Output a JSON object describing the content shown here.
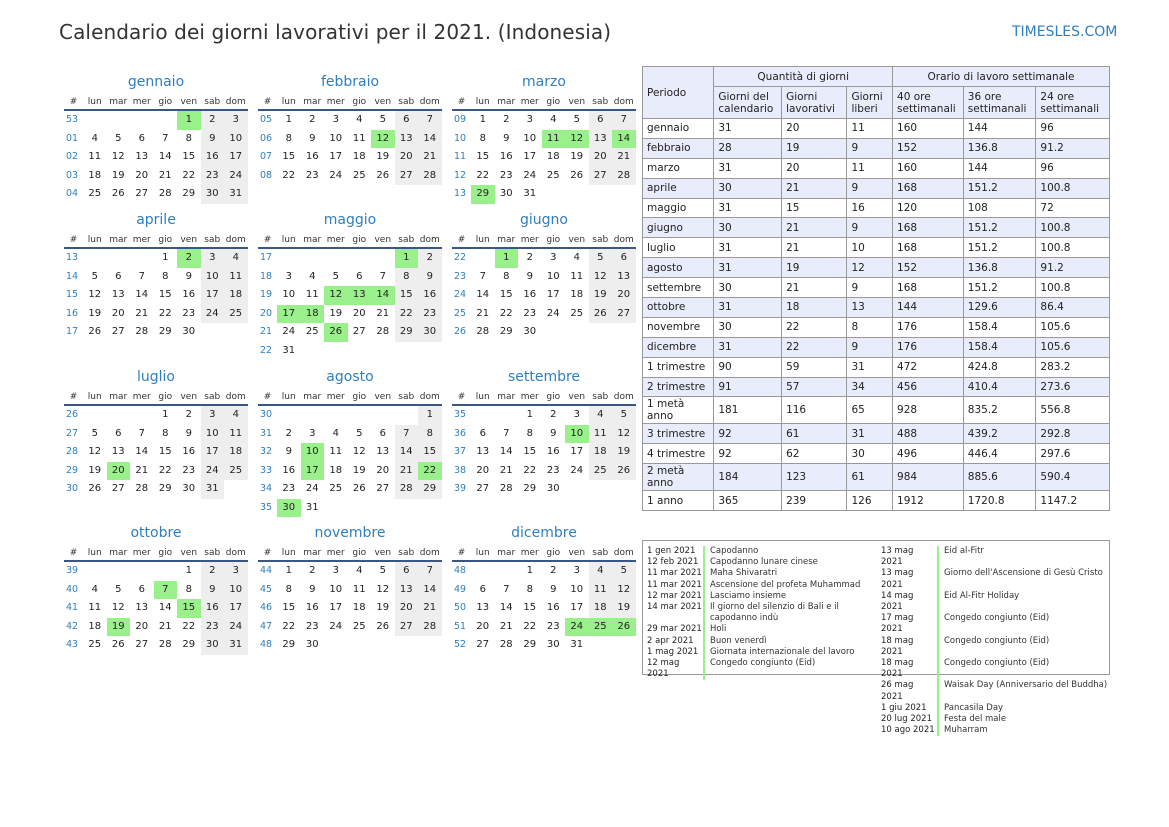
{
  "title": "Calendario dei giorni lavorativi per il 2021. (Indonesia)",
  "brand": "TIMESLES.COM",
  "colors": {
    "accent": "#2e7fbf",
    "holiday": "#9af08a",
    "weekend": "#eeeeee",
    "header_rule": "#3a5683",
    "table_head": "#e8ecfb"
  },
  "weekday_header": [
    "#",
    "lun",
    "mar",
    "mer",
    "gio",
    "ven",
    "sab",
    "dom"
  ],
  "months": [
    {
      "name": "gennaio",
      "rows": [
        {
          "w": "53",
          "d": [
            "",
            "",
            "",
            "",
            "1",
            "2",
            "3"
          ]
        },
        {
          "w": "01",
          "d": [
            "4",
            "5",
            "6",
            "7",
            "8",
            "9",
            "10"
          ]
        },
        {
          "w": "02",
          "d": [
            "11",
            "12",
            "13",
            "14",
            "15",
            "16",
            "17"
          ]
        },
        {
          "w": "03",
          "d": [
            "18",
            "19",
            "20",
            "21",
            "22",
            "23",
            "24"
          ]
        },
        {
          "w": "04",
          "d": [
            "25",
            "26",
            "27",
            "28",
            "29",
            "30",
            "31"
          ]
        }
      ],
      "holidays": [
        "1"
      ]
    },
    {
      "name": "febbraio",
      "rows": [
        {
          "w": "05",
          "d": [
            "1",
            "2",
            "3",
            "4",
            "5",
            "6",
            "7"
          ]
        },
        {
          "w": "06",
          "d": [
            "8",
            "9",
            "10",
            "11",
            "12",
            "13",
            "14"
          ]
        },
        {
          "w": "07",
          "d": [
            "15",
            "16",
            "17",
            "18",
            "19",
            "20",
            "21"
          ]
        },
        {
          "w": "08",
          "d": [
            "22",
            "23",
            "24",
            "25",
            "26",
            "27",
            "28"
          ]
        }
      ],
      "holidays": [
        "12"
      ]
    },
    {
      "name": "marzo",
      "rows": [
        {
          "w": "09",
          "d": [
            "1",
            "2",
            "3",
            "4",
            "5",
            "6",
            "7"
          ]
        },
        {
          "w": "10",
          "d": [
            "8",
            "9",
            "10",
            "11",
            "12",
            "13",
            "14"
          ]
        },
        {
          "w": "11",
          "d": [
            "15",
            "16",
            "17",
            "18",
            "19",
            "20",
            "21"
          ]
        },
        {
          "w": "12",
          "d": [
            "22",
            "23",
            "24",
            "25",
            "26",
            "27",
            "28"
          ]
        },
        {
          "w": "13",
          "d": [
            "29",
            "30",
            "31",
            "",
            "",
            "",
            ""
          ]
        }
      ],
      "holidays": [
        "11",
        "12",
        "14",
        "29"
      ]
    },
    {
      "name": "aprile",
      "rows": [
        {
          "w": "13",
          "d": [
            "",
            "",
            "",
            "1",
            "2",
            "3",
            "4"
          ]
        },
        {
          "w": "14",
          "d": [
            "5",
            "6",
            "7",
            "8",
            "9",
            "10",
            "11"
          ]
        },
        {
          "w": "15",
          "d": [
            "12",
            "13",
            "14",
            "15",
            "16",
            "17",
            "18"
          ]
        },
        {
          "w": "16",
          "d": [
            "19",
            "20",
            "21",
            "22",
            "23",
            "24",
            "25"
          ]
        },
        {
          "w": "17",
          "d": [
            "26",
            "27",
            "28",
            "29",
            "30",
            "",
            ""
          ]
        }
      ],
      "holidays": [
        "2"
      ]
    },
    {
      "name": "maggio",
      "rows": [
        {
          "w": "17",
          "d": [
            "",
            "",
            "",
            "",
            "",
            "1",
            "2"
          ]
        },
        {
          "w": "18",
          "d": [
            "3",
            "4",
            "5",
            "6",
            "7",
            "8",
            "9"
          ]
        },
        {
          "w": "19",
          "d": [
            "10",
            "11",
            "12",
            "13",
            "14",
            "15",
            "16"
          ]
        },
        {
          "w": "20",
          "d": [
            "17",
            "18",
            "19",
            "20",
            "21",
            "22",
            "23"
          ]
        },
        {
          "w": "21",
          "d": [
            "24",
            "25",
            "26",
            "27",
            "28",
            "29",
            "30"
          ]
        },
        {
          "w": "22",
          "d": [
            "31",
            "",
            "",
            "",
            "",
            "",
            ""
          ]
        }
      ],
      "holidays": [
        "1",
        "12",
        "13",
        "14",
        "17",
        "18",
        "26"
      ]
    },
    {
      "name": "giugno",
      "rows": [
        {
          "w": "22",
          "d": [
            "",
            "1",
            "2",
            "3",
            "4",
            "5",
            "6"
          ]
        },
        {
          "w": "23",
          "d": [
            "7",
            "8",
            "9",
            "10",
            "11",
            "12",
            "13"
          ]
        },
        {
          "w": "24",
          "d": [
            "14",
            "15",
            "16",
            "17",
            "18",
            "19",
            "20"
          ]
        },
        {
          "w": "25",
          "d": [
            "21",
            "22",
            "23",
            "24",
            "25",
            "26",
            "27"
          ]
        },
        {
          "w": "26",
          "d": [
            "28",
            "29",
            "30",
            "",
            "",
            "",
            ""
          ]
        }
      ],
      "holidays": [
        "1"
      ]
    },
    {
      "name": "luglio",
      "rows": [
        {
          "w": "26",
          "d": [
            "",
            "",
            "",
            "1",
            "2",
            "3",
            "4"
          ]
        },
        {
          "w": "27",
          "d": [
            "5",
            "6",
            "7",
            "8",
            "9",
            "10",
            "11"
          ]
        },
        {
          "w": "28",
          "d": [
            "12",
            "13",
            "14",
            "15",
            "16",
            "17",
            "18"
          ]
        },
        {
          "w": "29",
          "d": [
            "19",
            "20",
            "21",
            "22",
            "23",
            "24",
            "25"
          ]
        },
        {
          "w": "30",
          "d": [
            "26",
            "27",
            "28",
            "29",
            "30",
            "31",
            ""
          ]
        }
      ],
      "holidays": [
        "20"
      ]
    },
    {
      "name": "agosto",
      "rows": [
        {
          "w": "30",
          "d": [
            "",
            "",
            "",
            "",
            "",
            "",
            "1"
          ]
        },
        {
          "w": "31",
          "d": [
            "2",
            "3",
            "4",
            "5",
            "6",
            "7",
            "8"
          ]
        },
        {
          "w": "32",
          "d": [
            "9",
            "10",
            "11",
            "12",
            "13",
            "14",
            "15"
          ]
        },
        {
          "w": "33",
          "d": [
            "16",
            "17",
            "18",
            "19",
            "20",
            "21",
            "22"
          ]
        },
        {
          "w": "34",
          "d": [
            "23",
            "24",
            "25",
            "26",
            "27",
            "28",
            "29"
          ]
        },
        {
          "w": "35",
          "d": [
            "30",
            "31",
            "",
            "",
            "",
            "",
            ""
          ]
        }
      ],
      "holidays": [
        "10",
        "17",
        "22",
        "30"
      ]
    },
    {
      "name": "settembre",
      "rows": [
        {
          "w": "35",
          "d": [
            "",
            "",
            "1",
            "2",
            "3",
            "4",
            "5"
          ]
        },
        {
          "w": "36",
          "d": [
            "6",
            "7",
            "8",
            "9",
            "10",
            "11",
            "12"
          ]
        },
        {
          "w": "37",
          "d": [
            "13",
            "14",
            "15",
            "16",
            "17",
            "18",
            "19"
          ]
        },
        {
          "w": "38",
          "d": [
            "20",
            "21",
            "22",
            "23",
            "24",
            "25",
            "26"
          ]
        },
        {
          "w": "39",
          "d": [
            "27",
            "28",
            "29",
            "30",
            "",
            "",
            ""
          ]
        }
      ],
      "holidays": [
        "10"
      ]
    },
    {
      "name": "ottobre",
      "rows": [
        {
          "w": "39",
          "d": [
            "",
            "",
            "",
            "",
            "1",
            "2",
            "3"
          ]
        },
        {
          "w": "40",
          "d": [
            "4",
            "5",
            "6",
            "7",
            "8",
            "9",
            "10"
          ]
        },
        {
          "w": "41",
          "d": [
            "11",
            "12",
            "13",
            "14",
            "15",
            "16",
            "17"
          ]
        },
        {
          "w": "42",
          "d": [
            "18",
            "19",
            "20",
            "21",
            "22",
            "23",
            "24"
          ]
        },
        {
          "w": "43",
          "d": [
            "25",
            "26",
            "27",
            "28",
            "29",
            "30",
            "31"
          ]
        }
      ],
      "holidays": [
        "7",
        "15",
        "19"
      ]
    },
    {
      "name": "novembre",
      "rows": [
        {
          "w": "44",
          "d": [
            "1",
            "2",
            "3",
            "4",
            "5",
            "6",
            "7"
          ]
        },
        {
          "w": "45",
          "d": [
            "8",
            "9",
            "10",
            "11",
            "12",
            "13",
            "14"
          ]
        },
        {
          "w": "46",
          "d": [
            "15",
            "16",
            "17",
            "18",
            "19",
            "20",
            "21"
          ]
        },
        {
          "w": "47",
          "d": [
            "22",
            "23",
            "24",
            "25",
            "26",
            "27",
            "28"
          ]
        },
        {
          "w": "48",
          "d": [
            "29",
            "30",
            "",
            "",
            "",
            "",
            ""
          ]
        }
      ],
      "holidays": []
    },
    {
      "name": "dicembre",
      "rows": [
        {
          "w": "48",
          "d": [
            "",
            "",
            "1",
            "2",
            "3",
            "4",
            "5"
          ]
        },
        {
          "w": "49",
          "d": [
            "6",
            "7",
            "8",
            "9",
            "10",
            "11",
            "12"
          ]
        },
        {
          "w": "50",
          "d": [
            "13",
            "14",
            "15",
            "16",
            "17",
            "18",
            "19"
          ]
        },
        {
          "w": "51",
          "d": [
            "20",
            "21",
            "22",
            "23",
            "24",
            "25",
            "26"
          ]
        },
        {
          "w": "52",
          "d": [
            "27",
            "28",
            "29",
            "30",
            "31",
            "",
            ""
          ]
        }
      ],
      "holidays": [
        "24",
        "25",
        "26"
      ]
    }
  ],
  "stats": {
    "head": {
      "period": "Periodo",
      "days_group": "Quantità di giorni",
      "hours_group": "Orario di lavoro settimanale",
      "cols": [
        "Giorni del calendario",
        "Giorni lavorativi",
        "Giorni liberi",
        "40 ore settimanali",
        "36 ore settimanali",
        "24 ore settimanali"
      ]
    },
    "rows": [
      [
        "gennaio",
        "31",
        "20",
        "11",
        "160",
        "144",
        "96"
      ],
      [
        "febbraio",
        "28",
        "19",
        "9",
        "152",
        "136.8",
        "91.2"
      ],
      [
        "marzo",
        "31",
        "20",
        "11",
        "160",
        "144",
        "96"
      ],
      [
        "aprile",
        "30",
        "21",
        "9",
        "168",
        "151.2",
        "100.8"
      ],
      [
        "maggio",
        "31",
        "15",
        "16",
        "120",
        "108",
        "72"
      ],
      [
        "giugno",
        "30",
        "21",
        "9",
        "168",
        "151.2",
        "100.8"
      ],
      [
        "luglio",
        "31",
        "21",
        "10",
        "168",
        "151.2",
        "100.8"
      ],
      [
        "agosto",
        "31",
        "19",
        "12",
        "152",
        "136.8",
        "91.2"
      ],
      [
        "settembre",
        "30",
        "21",
        "9",
        "168",
        "151.2",
        "100.8"
      ],
      [
        "ottobre",
        "31",
        "18",
        "13",
        "144",
        "129.6",
        "86.4"
      ],
      [
        "novembre",
        "30",
        "22",
        "8",
        "176",
        "158.4",
        "105.6"
      ],
      [
        "dicembre",
        "31",
        "22",
        "9",
        "176",
        "158.4",
        "105.6"
      ],
      [
        "1 trimestre",
        "90",
        "59",
        "31",
        "472",
        "424.8",
        "283.2"
      ],
      [
        "2 trimestre",
        "91",
        "57",
        "34",
        "456",
        "410.4",
        "273.6"
      ],
      [
        "1 metà anno",
        "181",
        "116",
        "65",
        "928",
        "835.2",
        "556.8"
      ],
      [
        "3 trimestre",
        "92",
        "61",
        "31",
        "488",
        "439.2",
        "292.8"
      ],
      [
        "4 trimestre",
        "92",
        "62",
        "30",
        "496",
        "446.4",
        "297.6"
      ],
      [
        "2 metà anno",
        "184",
        "123",
        "61",
        "984",
        "885.6",
        "590.4"
      ],
      [
        "1 anno",
        "365",
        "239",
        "126",
        "1912",
        "1720.8",
        "1147.2"
      ]
    ]
  },
  "holiday_list": {
    "col1": [
      {
        "date": "1 gen 2021",
        "name": "Capodanno"
      },
      {
        "date": "12 feb 2021",
        "name": "Capodanno lunare cinese"
      },
      {
        "date": "11 mar 2021",
        "name": "Maha Shivaratri"
      },
      {
        "date": "11 mar 2021",
        "name": "Ascensione del profeta Muhammad"
      },
      {
        "date": "12 mar 2021",
        "name": "Lasciamo insieme"
      },
      {
        "date": "14 mar 2021",
        "name": "Il giorno del silenzio di Bali e il capodanno indù"
      },
      {
        "date": "29 mar 2021",
        "name": "Holi"
      },
      {
        "date": "2 apr 2021",
        "name": "Buon venerdì"
      },
      {
        "date": "1 mag 2021",
        "name": "Giornata internazionale del lavoro"
      },
      {
        "date": "12 mag 2021",
        "name": "Congedo congiunto (Eid)"
      }
    ],
    "col2": [
      {
        "date": "13 mag 2021",
        "name": "Eid al-Fitr"
      },
      {
        "date": "13 mag 2021",
        "name": "Giorno dell'Ascensione di Gesù Cristo"
      },
      {
        "date": "14 mag 2021",
        "name": "Eid Al-Fitr Holiday"
      },
      {
        "date": "17 mag 2021",
        "name": "Congedo congiunto (Eid)"
      },
      {
        "date": "18 mag 2021",
        "name": "Congedo congiunto (Eid)"
      },
      {
        "date": "18 mag 2021",
        "name": "Congedo congiunto (Eid)"
      },
      {
        "date": "26 mag 2021",
        "name": "Waisak Day (Anniversario del Buddha)"
      },
      {
        "date": "1 giu 2021",
        "name": "Pancasila Day"
      },
      {
        "date": "20 lug 2021",
        "name": "Festa del male"
      },
      {
        "date": "10 ago 2021",
        "name": "Muharram"
      }
    ]
  }
}
